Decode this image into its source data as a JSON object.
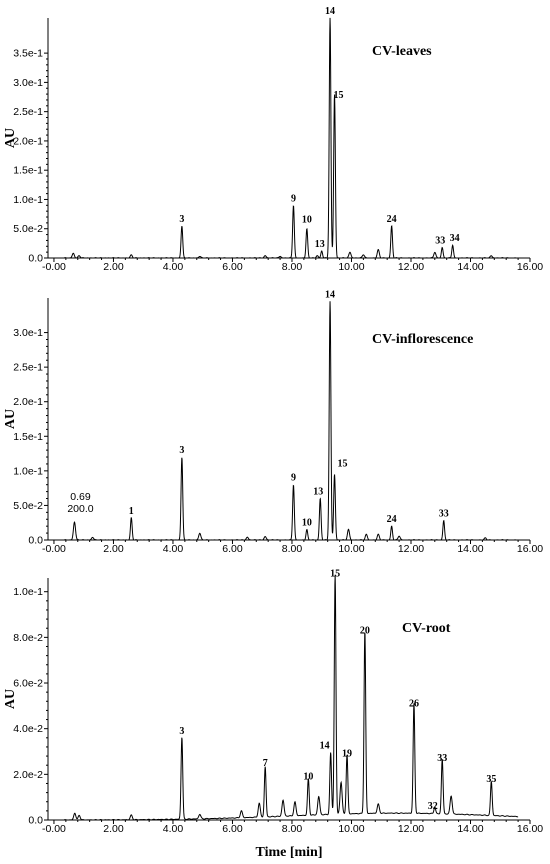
{
  "chart_data": [
    {
      "type": "line",
      "title": "CV-leaves",
      "ylabel": "AU",
      "xlabel": "",
      "xlim": [
        -0.2,
        16.0
      ],
      "ylim": [
        0,
        0.41
      ],
      "xticks": [
        "-0.00",
        "2.00",
        "4.00",
        "6.00",
        "8.00",
        "10.00",
        "12.00",
        "14.00",
        "16.00"
      ],
      "yticks": [
        {
          "v": 0.0,
          "label": "0.0"
        },
        {
          "v": 0.05,
          "label": "5.0e-2"
        },
        {
          "v": 0.1,
          "label": "1.0e-1"
        },
        {
          "v": 0.15,
          "label": "1.5e-1"
        },
        {
          "v": 0.2,
          "label": "2.0e-1"
        },
        {
          "v": 0.25,
          "label": "2.5e-1"
        },
        {
          "v": 0.3,
          "label": "3.0e-1"
        },
        {
          "v": 0.35,
          "label": "3.5e-1"
        }
      ],
      "peaks": [
        {
          "label": "",
          "x": 0.65,
          "y": 0.008
        },
        {
          "label": "",
          "x": 0.85,
          "y": 0.004
        },
        {
          "label": "",
          "x": 2.6,
          "y": 0.005
        },
        {
          "label": "3",
          "x": 4.3,
          "y": 0.055
        },
        {
          "label": "",
          "x": 4.9,
          "y": 0.003
        },
        {
          "label": "",
          "x": 7.1,
          "y": 0.004
        },
        {
          "label": "",
          "x": 7.6,
          "y": 0.003
        },
        {
          "label": "9",
          "x": 8.05,
          "y": 0.09
        },
        {
          "label": "10",
          "x": 8.5,
          "y": 0.05
        },
        {
          "label": "",
          "x": 8.85,
          "y": 0.004
        },
        {
          "label": "13",
          "x": 9.0,
          "y": 0.012
        },
        {
          "label": "14",
          "x": 9.28,
          "y": 0.41
        },
        {
          "label": "15",
          "x": 9.43,
          "y": 0.28
        },
        {
          "label": "",
          "x": 9.95,
          "y": 0.01
        },
        {
          "label": "",
          "x": 10.4,
          "y": 0.006
        },
        {
          "label": "",
          "x": 10.9,
          "y": 0.014
        },
        {
          "label": "24",
          "x": 11.35,
          "y": 0.055
        },
        {
          "label": "",
          "x": 12.8,
          "y": 0.01
        },
        {
          "label": "33",
          "x": 13.05,
          "y": 0.018
        },
        {
          "label": "34",
          "x": 13.4,
          "y": 0.022
        },
        {
          "label": "",
          "x": 14.7,
          "y": 0.004
        }
      ]
    },
    {
      "type": "line",
      "title": "CV-inflorescence",
      "ylabel": "AU",
      "xlabel": "",
      "xlim": [
        -0.2,
        16.0
      ],
      "ylim": [
        0,
        0.35
      ],
      "xticks": [
        "-0.00",
        "2.00",
        "4.00",
        "6.00",
        "8.00",
        "10.00",
        "12.00",
        "14.00",
        "16.00"
      ],
      "yticks": [
        {
          "v": 0.0,
          "label": "0.0"
        },
        {
          "v": 0.05,
          "label": "5.0e-2"
        },
        {
          "v": 0.1,
          "label": "1.0e-1"
        },
        {
          "v": 0.15,
          "label": "1.5e-1"
        },
        {
          "v": 0.2,
          "label": "2.0e-1"
        },
        {
          "v": 0.25,
          "label": "2.5e-1"
        },
        {
          "v": 0.3,
          "label": "3.0e-1"
        }
      ],
      "annotations": [
        {
          "text": "0.69",
          "x": 0.69
        },
        {
          "text": "200.0",
          "x": 0.69
        }
      ],
      "peaks": [
        {
          "label": "",
          "x": 0.69,
          "y": 0.026
        },
        {
          "label": "",
          "x": 1.3,
          "y": 0.004
        },
        {
          "label": "1",
          "x": 2.6,
          "y": 0.032
        },
        {
          "label": "3",
          "x": 4.3,
          "y": 0.12
        },
        {
          "label": "",
          "x": 4.9,
          "y": 0.01
        },
        {
          "label": "",
          "x": 6.5,
          "y": 0.004
        },
        {
          "label": "",
          "x": 7.1,
          "y": 0.005
        },
        {
          "label": "9",
          "x": 8.05,
          "y": 0.08
        },
        {
          "label": "10",
          "x": 8.5,
          "y": 0.015
        },
        {
          "label": "13",
          "x": 8.95,
          "y": 0.06
        },
        {
          "label": "14",
          "x": 9.28,
          "y": 0.345
        },
        {
          "label": "15",
          "x": 9.43,
          "y": 0.095
        },
        {
          "label": "",
          "x": 9.9,
          "y": 0.015
        },
        {
          "label": "",
          "x": 10.5,
          "y": 0.008
        },
        {
          "label": "",
          "x": 10.9,
          "y": 0.008
        },
        {
          "label": "24",
          "x": 11.35,
          "y": 0.02
        },
        {
          "label": "",
          "x": 11.6,
          "y": 0.006
        },
        {
          "label": "33",
          "x": 13.1,
          "y": 0.028
        },
        {
          "label": "",
          "x": 14.5,
          "y": 0.003
        }
      ]
    },
    {
      "type": "line",
      "title": "CV-root",
      "ylabel": "AU",
      "xlabel": "Time [min]",
      "xlim": [
        -0.2,
        16.0
      ],
      "ylim": [
        0,
        0.106
      ],
      "xticks": [
        "-0.00",
        "2.00",
        "4.00",
        "6.00",
        "8.00",
        "10.00",
        "12.00",
        "14.00",
        "16.00"
      ],
      "yticks": [
        {
          "v": 0.0,
          "label": "0.0"
        },
        {
          "v": 0.02,
          "label": "2.0e-2"
        },
        {
          "v": 0.04,
          "label": "4.0e-2"
        },
        {
          "v": 0.06,
          "label": "6.0e-2"
        },
        {
          "v": 0.08,
          "label": "8.0e-2"
        },
        {
          "v": 0.1,
          "label": "1.0e-1"
        }
      ],
      "peaks": [
        {
          "label": "",
          "x": 0.7,
          "y": 0.003
        },
        {
          "label": "",
          "x": 0.85,
          "y": 0.002
        },
        {
          "label": "",
          "x": 2.6,
          "y": 0.002
        },
        {
          "label": "3",
          "x": 4.3,
          "y": 0.036
        },
        {
          "label": "",
          "x": 4.9,
          "y": 0.002
        },
        {
          "label": "",
          "x": 6.3,
          "y": 0.003
        },
        {
          "label": "",
          "x": 6.9,
          "y": 0.006
        },
        {
          "label": "7",
          "x": 7.1,
          "y": 0.022
        },
        {
          "label": "",
          "x": 7.7,
          "y": 0.007
        },
        {
          "label": "",
          "x": 8.1,
          "y": 0.006
        },
        {
          "label": "10",
          "x": 8.55,
          "y": 0.016
        },
        {
          "label": "",
          "x": 8.9,
          "y": 0.008
        },
        {
          "label": "14",
          "x": 9.3,
          "y": 0.027
        },
        {
          "label": "15",
          "x": 9.45,
          "y": 0.105
        },
        {
          "label": "",
          "x": 9.65,
          "y": 0.014
        },
        {
          "label": "19",
          "x": 9.85,
          "y": 0.026
        },
        {
          "label": "20",
          "x": 10.45,
          "y": 0.08
        },
        {
          "label": "",
          "x": 10.9,
          "y": 0.004
        },
        {
          "label": "26",
          "x": 12.1,
          "y": 0.048
        },
        {
          "label": "32",
          "x": 12.8,
          "y": 0.003
        },
        {
          "label": "33",
          "x": 13.05,
          "y": 0.024
        },
        {
          "label": "",
          "x": 13.35,
          "y": 0.008
        },
        {
          "label": "35",
          "x": 14.7,
          "y": 0.015
        }
      ]
    }
  ]
}
